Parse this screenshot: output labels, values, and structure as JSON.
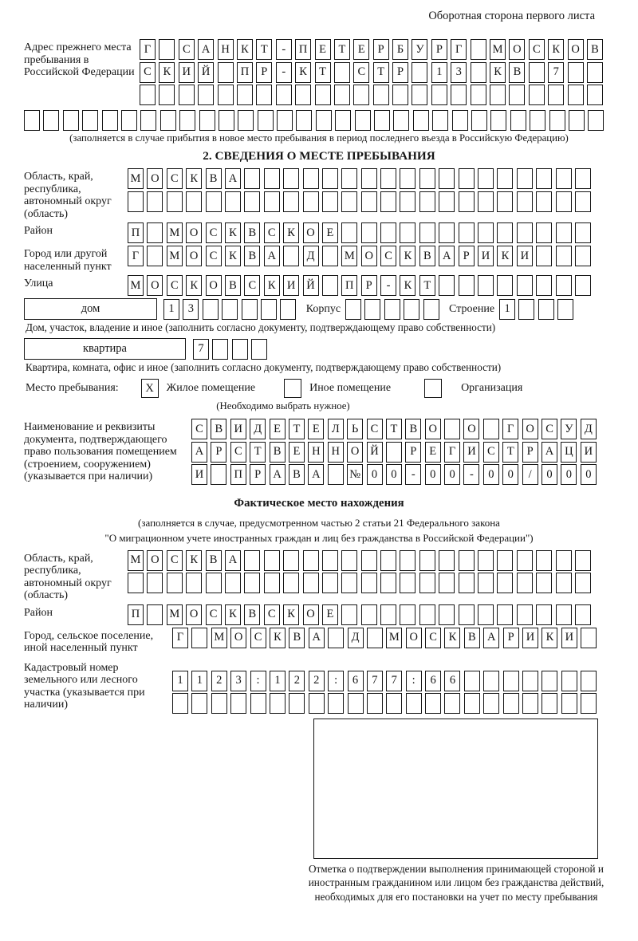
{
  "page": {
    "header_note": "Оборотная сторона первого листа"
  },
  "prev_address": {
    "label": "Адрес прежнего места пребывания в Российской Федерации",
    "row1": {
      "text": "Г САНКТ-ПЕТЕРБУРГ МОСКОВ",
      "len": 24
    },
    "row2": {
      "text": "СКИЙ ПР-КТ СТР 13 КВ 7",
      "len": 24
    },
    "row3": {
      "text": "",
      "len": 24
    },
    "row4": {
      "text": "",
      "len": 30
    },
    "note": "(заполняется в случае прибытия в новое место пребывания в период последнего въезда в Российскую Федерацию)"
  },
  "section2": {
    "title": "2. СВЕДЕНИЯ О МЕСТЕ ПРЕБЫВАНИЯ",
    "region": {
      "label": "Область, край, республика, автономный округ (область)",
      "row1": {
        "text": "МОСКВА",
        "len": 24
      },
      "row2": {
        "text": "",
        "len": 24
      }
    },
    "district": {
      "label": "Район",
      "row": {
        "text": "П МОСКВСКОЕ",
        "len": 24
      }
    },
    "city": {
      "label": "Город или другой населенный пункт",
      "row": {
        "text": "Г МОСКВА Д МОСКВАРИКИ",
        "len": 24
      }
    },
    "street": {
      "label": "Улица",
      "row": {
        "text": "МОСКОВСКИЙ ПР-КТ",
        "len": 24
      }
    },
    "house": {
      "box_label": "дом",
      "number": {
        "text": "13",
        "len": 7
      },
      "korpus_label": "Корпус",
      "korpus": {
        "text": "",
        "len": 5
      },
      "stroenie_label": "Строение",
      "stroenie": {
        "text": "1",
        "len": 4
      }
    },
    "house_note": "Дом, участок, владение и иное (заполнить согласно документу, подтверждающему право собственности)",
    "apartment": {
      "box_label": "квартира",
      "number": {
        "text": "7",
        "len": 4
      }
    },
    "apartment_note": "Квартира, комната, офис и иное (заполнить согласно документу, подтверждающему право собственности)",
    "stay_type": {
      "label": "Место пребывания:",
      "options": [
        {
          "label": "Жилое помещение",
          "mark": "X"
        },
        {
          "label": "Иное помещение",
          "mark": ""
        },
        {
          "label": "Организация",
          "mark": ""
        }
      ],
      "note": "(Необходимо выбрать нужное)"
    },
    "document": {
      "label": "Наименование и реквизиты документа, подтверждающего право пользования помещением (строением, сооружением) (указывается при наличии)",
      "row1": {
        "text": "СВИДЕТЕЛЬСТВО О ГОСУД",
        "len": 21
      },
      "row2": {
        "text": "АРСТВЕННОЙ РЕГИСТРАЦИ",
        "len": 21
      },
      "row3": {
        "text": "И ПРАВА №00-00-00/000",
        "len": 21
      }
    }
  },
  "actual_location": {
    "title": "Фактическое место нахождения",
    "note_line1": "(заполняется в случае, предусмотренном частью 2 статьи 21 Федерального закона",
    "note_line2": "\"О миграционном учете иностранных граждан и лиц без гражданства в Российской Федерации\")",
    "region": {
      "label": "Область, край, республика, автономный округ (область)",
      "row1": {
        "text": "МОСКВА",
        "len": 24
      },
      "row2": {
        "text": "",
        "len": 24
      }
    },
    "district": {
      "label": "Район",
      "row": {
        "text": "П МОСКВСКОЕ",
        "len": 24
      }
    },
    "city": {
      "label": "Город, сельское поселение, иной населенный пункт",
      "row": {
        "text": "Г МОСКВА Д МОСКВАРИКИ",
        "len": 22
      }
    },
    "cadastral": {
      "label": "Кадастровый номер земельного или лесного участка (указывается при наличии)",
      "row1": {
        "text": "1123:122:677:66",
        "len": 22
      },
      "row2": {
        "text": "",
        "len": 22
      }
    },
    "stamp_caption": "Отметка о подтверждении выполнения принимающей стороной и иностранным гражданином или лицом без гражданства действий, необходимых для его постановки на учет по месту пребывания"
  },
  "colors": {
    "ink": "#161616",
    "paper": "#ffffff"
  }
}
